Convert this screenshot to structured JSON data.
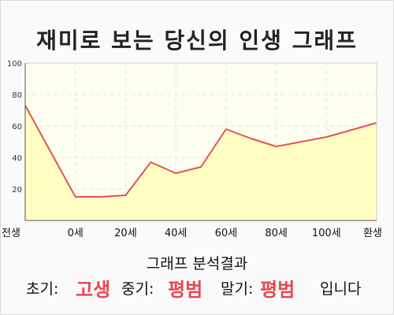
{
  "title": "재미로 보는 당신의 인생 그래프",
  "chart_data": {
    "type": "area",
    "x_labels": [
      "전생",
      "0세",
      "20세",
      "40세",
      "60세",
      "80세",
      "100세",
      "환생"
    ],
    "points": [
      [
        -0.5,
        73
      ],
      [
        0,
        15
      ],
      [
        0.25,
        15
      ],
      [
        0.5,
        16
      ],
      [
        0.75,
        37
      ],
      [
        1.0,
        30
      ],
      [
        1.25,
        34
      ],
      [
        1.5,
        58
      ],
      [
        1.75,
        52
      ],
      [
        2.0,
        47
      ],
      [
        2.5,
        53
      ],
      [
        3.0,
        62
      ]
    ],
    "x_domain": [
      -0.5,
      3.0
    ],
    "yticks": [
      20,
      40,
      60,
      80,
      100
    ],
    "ylim": [
      0,
      100
    ],
    "line_color": "#e2525a",
    "fill_color": "#ffffc4",
    "grid": true
  },
  "results": {
    "heading": "그래프 분석결과",
    "early_label": "초기:",
    "early_value": "고생",
    "mid_label": "중기:",
    "mid_value": "평범",
    "late_label": "말기:",
    "late_value": "평범",
    "ending": "입니다"
  }
}
